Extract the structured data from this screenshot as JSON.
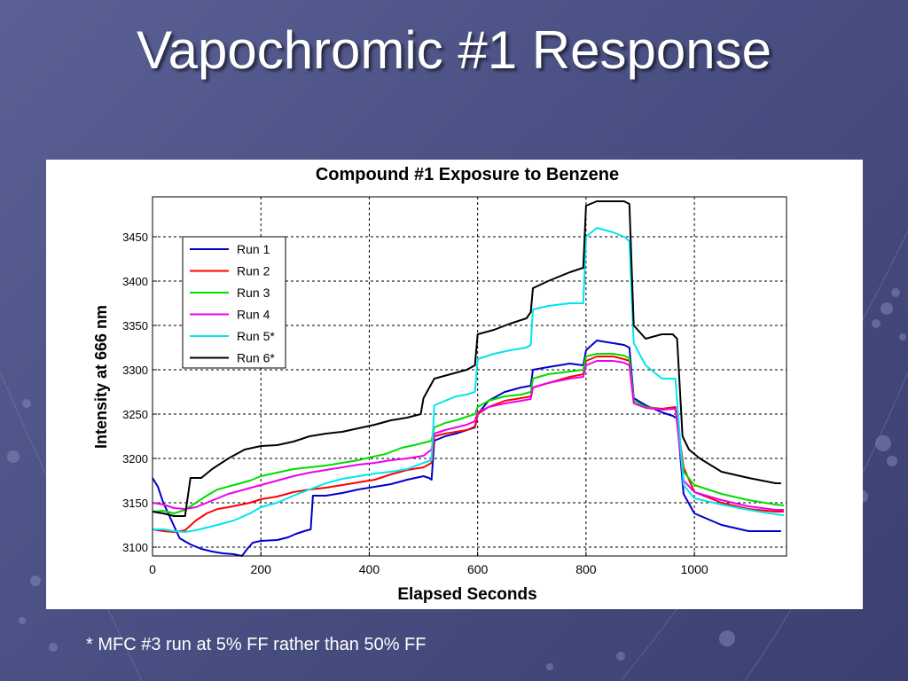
{
  "slide": {
    "title": "Vapochromic #1 Response",
    "footnote": "* MFC #3 run at 5% FF rather than 50% FF"
  },
  "chart_data": {
    "type": "line",
    "title": "Compound #1 Exposure to Benzene",
    "xlabel": "Elapsed Seconds",
    "ylabel": "Intensity at 666 nm",
    "xlim": [
      0,
      1170
    ],
    "ylim": [
      3090,
      3495
    ],
    "xticks": [
      0,
      200,
      400,
      600,
      800,
      1000
    ],
    "yticks": [
      3100,
      3150,
      3200,
      3250,
      3300,
      3350,
      3400,
      3450
    ],
    "grid": true,
    "legend_position": "top-left",
    "series": [
      {
        "name": "Run 1",
        "color": "#0000cc",
        "points": [
          [
            0,
            3178
          ],
          [
            10,
            3168
          ],
          [
            20,
            3150
          ],
          [
            35,
            3130
          ],
          [
            50,
            3110
          ],
          [
            70,
            3103
          ],
          [
            90,
            3098
          ],
          [
            110,
            3095
          ],
          [
            130,
            3093
          ],
          [
            150,
            3092
          ],
          [
            165,
            3090
          ],
          [
            175,
            3098
          ],
          [
            185,
            3105
          ],
          [
            200,
            3107
          ],
          [
            230,
            3108
          ],
          [
            250,
            3111
          ],
          [
            265,
            3115
          ],
          [
            280,
            3118
          ],
          [
            292,
            3120
          ],
          [
            296,
            3158
          ],
          [
            320,
            3158
          ],
          [
            350,
            3161
          ],
          [
            380,
            3165
          ],
          [
            400,
            3167
          ],
          [
            420,
            3169
          ],
          [
            440,
            3171
          ],
          [
            470,
            3176
          ],
          [
            500,
            3180
          ],
          [
            510,
            3178
          ],
          [
            515,
            3176
          ],
          [
            520,
            3220
          ],
          [
            540,
            3225
          ],
          [
            560,
            3228
          ],
          [
            580,
            3232
          ],
          [
            595,
            3235
          ],
          [
            600,
            3250
          ],
          [
            620,
            3265
          ],
          [
            650,
            3275
          ],
          [
            680,
            3280
          ],
          [
            698,
            3282
          ],
          [
            702,
            3300
          ],
          [
            730,
            3303
          ],
          [
            770,
            3307
          ],
          [
            795,
            3305
          ],
          [
            800,
            3322
          ],
          [
            820,
            3333
          ],
          [
            850,
            3330
          ],
          [
            870,
            3328
          ],
          [
            880,
            3325
          ],
          [
            888,
            3268
          ],
          [
            910,
            3260
          ],
          [
            940,
            3252
          ],
          [
            960,
            3248
          ],
          [
            968,
            3245
          ],
          [
            980,
            3160
          ],
          [
            1000,
            3138
          ],
          [
            1050,
            3125
          ],
          [
            1100,
            3118
          ],
          [
            1150,
            3118
          ],
          [
            1160,
            3118
          ]
        ]
      },
      {
        "name": "Run 2",
        "color": "#ff0000",
        "points": [
          [
            0,
            3120
          ],
          [
            20,
            3118
          ],
          [
            40,
            3117
          ],
          [
            60,
            3119
          ],
          [
            80,
            3130
          ],
          [
            100,
            3138
          ],
          [
            120,
            3143
          ],
          [
            140,
            3145
          ],
          [
            180,
            3150
          ],
          [
            200,
            3154
          ],
          [
            230,
            3157
          ],
          [
            260,
            3162
          ],
          [
            290,
            3165
          ],
          [
            320,
            3167
          ],
          [
            350,
            3170
          ],
          [
            380,
            3173
          ],
          [
            410,
            3176
          ],
          [
            440,
            3182
          ],
          [
            470,
            3187
          ],
          [
            500,
            3190
          ],
          [
            515,
            3195
          ],
          [
            520,
            3225
          ],
          [
            540,
            3228
          ],
          [
            560,
            3230
          ],
          [
            580,
            3232
          ],
          [
            595,
            3236
          ],
          [
            600,
            3250
          ],
          [
            620,
            3258
          ],
          [
            650,
            3265
          ],
          [
            680,
            3268
          ],
          [
            698,
            3270
          ],
          [
            702,
            3280
          ],
          [
            730,
            3285
          ],
          [
            770,
            3292
          ],
          [
            795,
            3295
          ],
          [
            800,
            3310
          ],
          [
            820,
            3315
          ],
          [
            850,
            3315
          ],
          [
            870,
            3312
          ],
          [
            880,
            3310
          ],
          [
            888,
            3265
          ],
          [
            910,
            3258
          ],
          [
            940,
            3256
          ],
          [
            965,
            3258
          ],
          [
            980,
            3190
          ],
          [
            1000,
            3162
          ],
          [
            1050,
            3150
          ],
          [
            1100,
            3143
          ],
          [
            1150,
            3140
          ],
          [
            1165,
            3140
          ]
        ]
      },
      {
        "name": "Run 3",
        "color": "#00dd00",
        "points": [
          [
            0,
            3140
          ],
          [
            20,
            3141
          ],
          [
            40,
            3138
          ],
          [
            60,
            3142
          ],
          [
            80,
            3150
          ],
          [
            100,
            3158
          ],
          [
            120,
            3165
          ],
          [
            150,
            3170
          ],
          [
            180,
            3175
          ],
          [
            200,
            3180
          ],
          [
            230,
            3184
          ],
          [
            260,
            3188
          ],
          [
            290,
            3190
          ],
          [
            320,
            3192
          ],
          [
            350,
            3195
          ],
          [
            380,
            3198
          ],
          [
            400,
            3201
          ],
          [
            430,
            3205
          ],
          [
            460,
            3212
          ],
          [
            490,
            3216
          ],
          [
            515,
            3220
          ],
          [
            520,
            3235
          ],
          [
            540,
            3240
          ],
          [
            560,
            3243
          ],
          [
            580,
            3247
          ],
          [
            595,
            3250
          ],
          [
            600,
            3258
          ],
          [
            620,
            3265
          ],
          [
            650,
            3270
          ],
          [
            680,
            3272
          ],
          [
            698,
            3275
          ],
          [
            702,
            3290
          ],
          [
            730,
            3295
          ],
          [
            770,
            3298
          ],
          [
            795,
            3300
          ],
          [
            800,
            3315
          ],
          [
            820,
            3318
          ],
          [
            850,
            3318
          ],
          [
            870,
            3316
          ],
          [
            880,
            3313
          ],
          [
            888,
            3265
          ],
          [
            910,
            3258
          ],
          [
            940,
            3255
          ],
          [
            965,
            3256
          ],
          [
            980,
            3185
          ],
          [
            1000,
            3170
          ],
          [
            1050,
            3160
          ],
          [
            1100,
            3153
          ],
          [
            1150,
            3148
          ],
          [
            1165,
            3147
          ]
        ]
      },
      {
        "name": "Run 4",
        "color": "#ee00ee",
        "points": [
          [
            0,
            3150
          ],
          [
            20,
            3148
          ],
          [
            40,
            3144
          ],
          [
            60,
            3143
          ],
          [
            80,
            3145
          ],
          [
            100,
            3150
          ],
          [
            120,
            3155
          ],
          [
            140,
            3160
          ],
          [
            170,
            3165
          ],
          [
            200,
            3170
          ],
          [
            230,
            3175
          ],
          [
            260,
            3180
          ],
          [
            290,
            3184
          ],
          [
            320,
            3187
          ],
          [
            350,
            3190
          ],
          [
            380,
            3193
          ],
          [
            410,
            3195
          ],
          [
            440,
            3198
          ],
          [
            470,
            3200
          ],
          [
            500,
            3203
          ],
          [
            515,
            3210
          ],
          [
            520,
            3228
          ],
          [
            540,
            3232
          ],
          [
            560,
            3235
          ],
          [
            580,
            3238
          ],
          [
            595,
            3242
          ],
          [
            600,
            3252
          ],
          [
            620,
            3258
          ],
          [
            650,
            3262
          ],
          [
            680,
            3265
          ],
          [
            698,
            3267
          ],
          [
            702,
            3280
          ],
          [
            730,
            3285
          ],
          [
            770,
            3290
          ],
          [
            795,
            3292
          ],
          [
            800,
            3305
          ],
          [
            820,
            3310
          ],
          [
            850,
            3310
          ],
          [
            870,
            3308
          ],
          [
            880,
            3305
          ],
          [
            888,
            3262
          ],
          [
            910,
            3257
          ],
          [
            940,
            3255
          ],
          [
            965,
            3256
          ],
          [
            980,
            3175
          ],
          [
            1000,
            3162
          ],
          [
            1050,
            3153
          ],
          [
            1100,
            3146
          ],
          [
            1150,
            3142
          ],
          [
            1165,
            3142
          ]
        ]
      },
      {
        "name": "Run 5*",
        "color": "#00e5ee",
        "points": [
          [
            0,
            3120
          ],
          [
            20,
            3120
          ],
          [
            40,
            3118
          ],
          [
            60,
            3117
          ],
          [
            80,
            3119
          ],
          [
            100,
            3122
          ],
          [
            120,
            3125
          ],
          [
            150,
            3130
          ],
          [
            180,
            3138
          ],
          [
            200,
            3145
          ],
          [
            230,
            3150
          ],
          [
            260,
            3158
          ],
          [
            290,
            3165
          ],
          [
            320,
            3172
          ],
          [
            350,
            3177
          ],
          [
            380,
            3180
          ],
          [
            410,
            3183
          ],
          [
            440,
            3185
          ],
          [
            470,
            3188
          ],
          [
            500,
            3195
          ],
          [
            515,
            3198
          ],
          [
            520,
            3260
          ],
          [
            540,
            3265
          ],
          [
            560,
            3270
          ],
          [
            580,
            3272
          ],
          [
            595,
            3275
          ],
          [
            600,
            3312
          ],
          [
            630,
            3318
          ],
          [
            660,
            3322
          ],
          [
            690,
            3325
          ],
          [
            698,
            3328
          ],
          [
            702,
            3368
          ],
          [
            730,
            3372
          ],
          [
            770,
            3375
          ],
          [
            795,
            3375
          ],
          [
            800,
            3450
          ],
          [
            820,
            3460
          ],
          [
            850,
            3455
          ],
          [
            870,
            3450
          ],
          [
            880,
            3445
          ],
          [
            888,
            3330
          ],
          [
            910,
            3305
          ],
          [
            940,
            3290
          ],
          [
            965,
            3290
          ],
          [
            980,
            3170
          ],
          [
            1000,
            3155
          ],
          [
            1050,
            3148
          ],
          [
            1100,
            3142
          ],
          [
            1150,
            3137
          ],
          [
            1165,
            3136
          ]
        ]
      },
      {
        "name": "Run 6*",
        "color": "#000000",
        "points": [
          [
            0,
            3140
          ],
          [
            20,
            3138
          ],
          [
            40,
            3135
          ],
          [
            60,
            3135
          ],
          [
            70,
            3178
          ],
          [
            90,
            3178
          ],
          [
            110,
            3188
          ],
          [
            140,
            3200
          ],
          [
            170,
            3210
          ],
          [
            200,
            3214
          ],
          [
            230,
            3215
          ],
          [
            260,
            3219
          ],
          [
            290,
            3225
          ],
          [
            320,
            3228
          ],
          [
            350,
            3230
          ],
          [
            380,
            3234
          ],
          [
            410,
            3238
          ],
          [
            440,
            3243
          ],
          [
            470,
            3246
          ],
          [
            495,
            3250
          ],
          [
            500,
            3268
          ],
          [
            520,
            3290
          ],
          [
            550,
            3295
          ],
          [
            580,
            3300
          ],
          [
            595,
            3305
          ],
          [
            600,
            3340
          ],
          [
            630,
            3345
          ],
          [
            660,
            3352
          ],
          [
            690,
            3358
          ],
          [
            698,
            3365
          ],
          [
            702,
            3392
          ],
          [
            730,
            3400
          ],
          [
            770,
            3410
          ],
          [
            795,
            3415
          ],
          [
            800,
            3485
          ],
          [
            820,
            3490
          ],
          [
            850,
            3490
          ],
          [
            870,
            3490
          ],
          [
            880,
            3487
          ],
          [
            888,
            3350
          ],
          [
            910,
            3335
          ],
          [
            940,
            3340
          ],
          [
            960,
            3340
          ],
          [
            968,
            3335
          ],
          [
            978,
            3225
          ],
          [
            990,
            3210
          ],
          [
            1010,
            3200
          ],
          [
            1050,
            3185
          ],
          [
            1100,
            3178
          ],
          [
            1150,
            3172
          ],
          [
            1160,
            3172
          ]
        ]
      }
    ]
  }
}
